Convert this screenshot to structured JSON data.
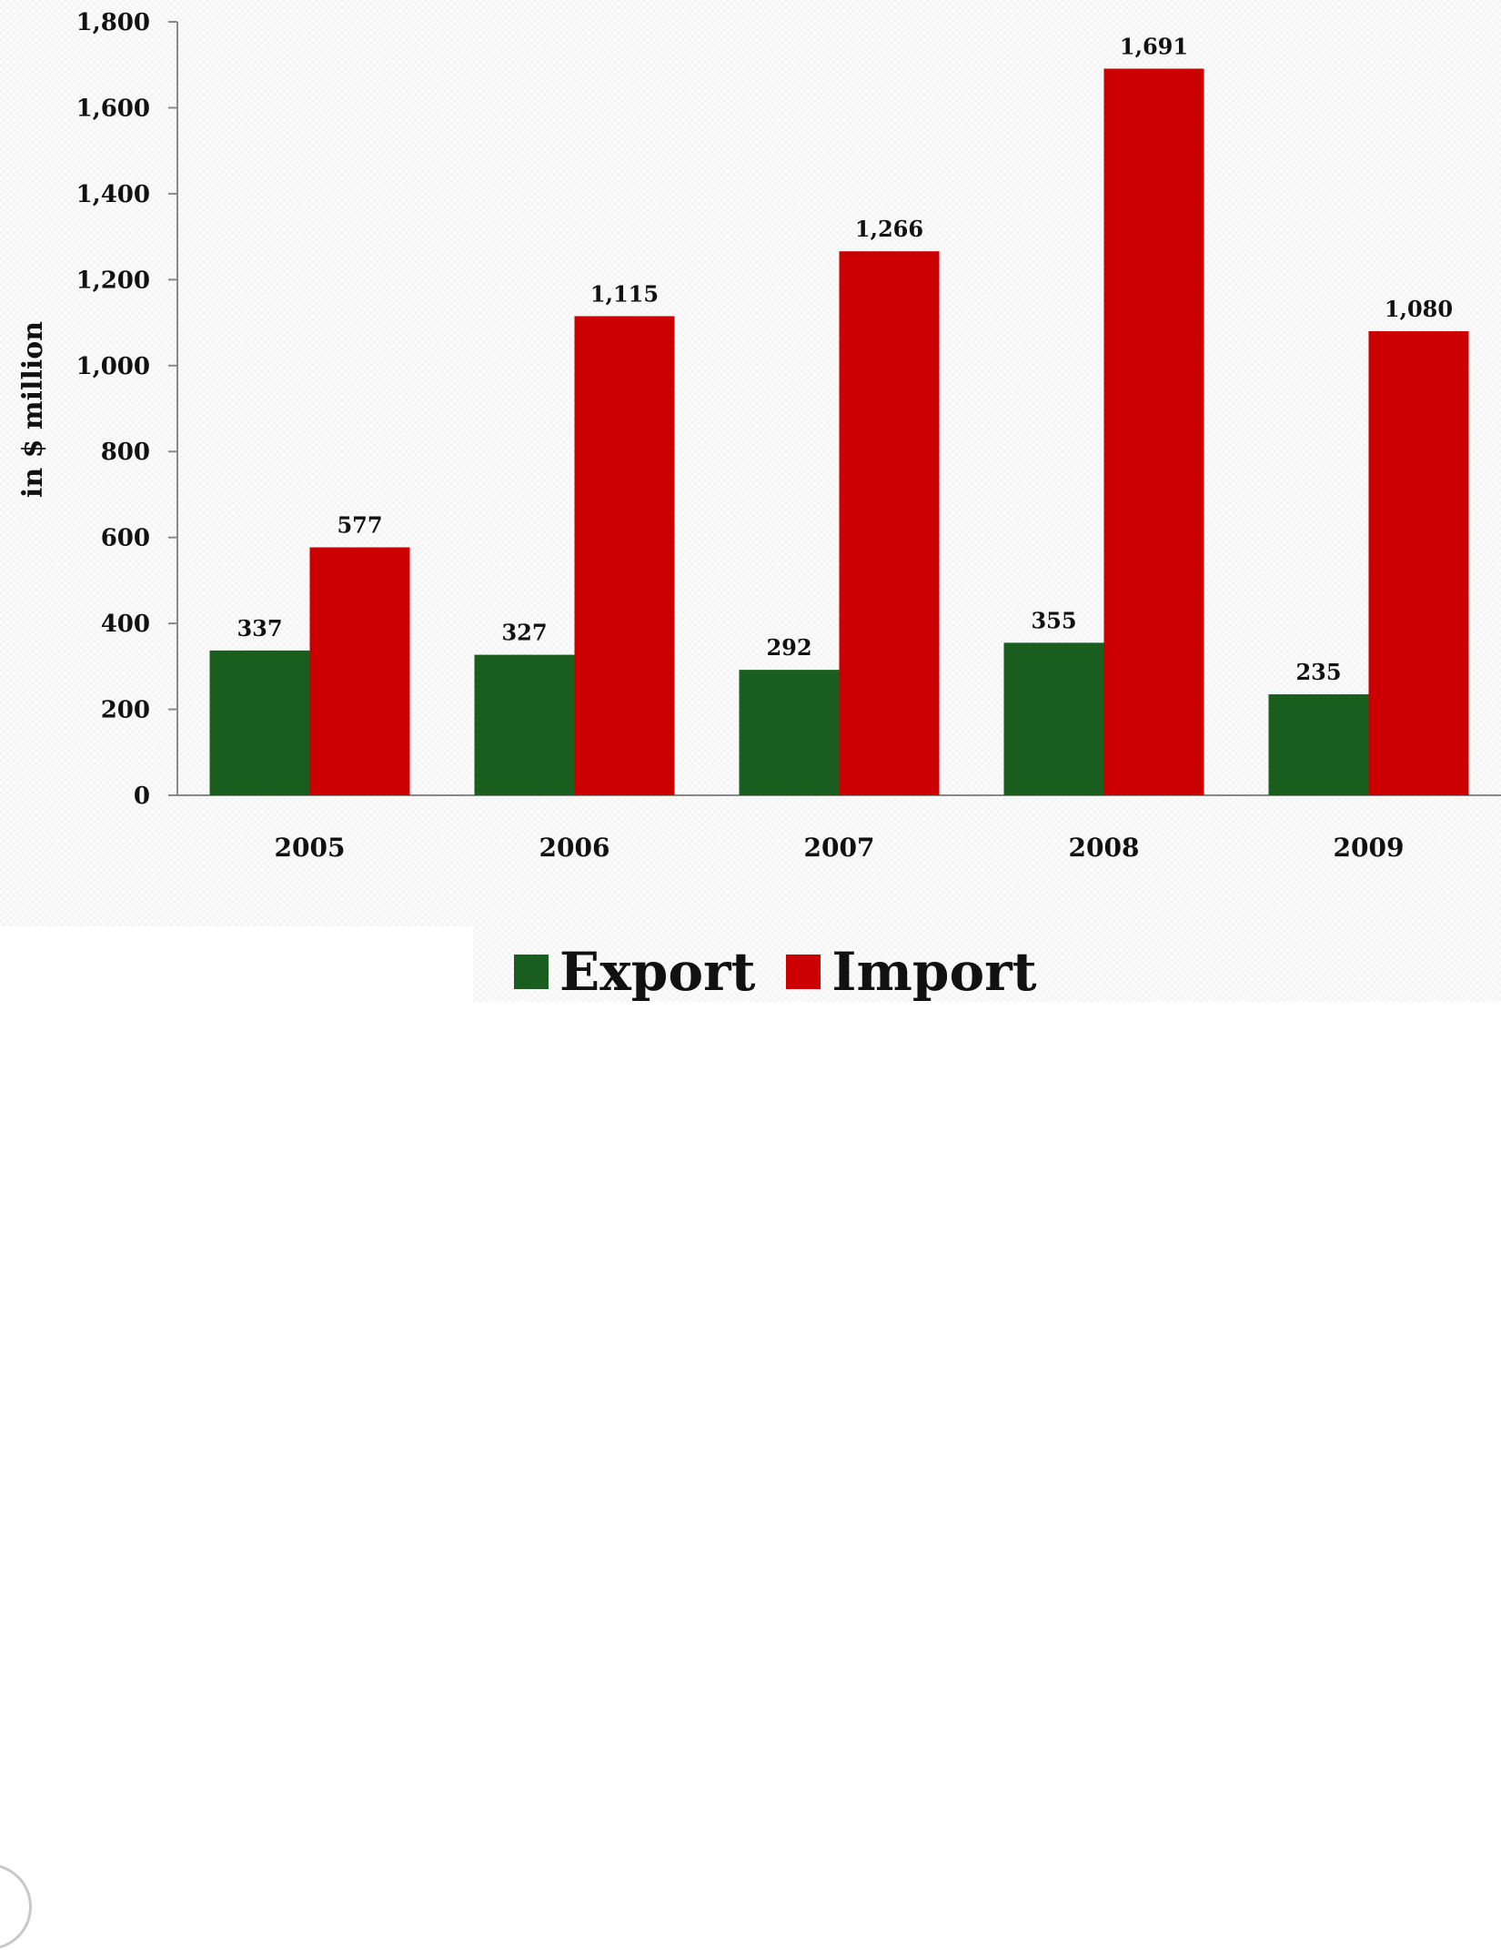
{
  "chart_data": {
    "type": "bar",
    "categories": [
      "2005",
      "2006",
      "2007",
      "2008",
      "2009"
    ],
    "series": [
      {
        "name": "Export",
        "color": "#1a5e1f",
        "values": [
          337,
          327,
          292,
          355,
          235
        ]
      },
      {
        "name": "Import",
        "color": "#cc0000",
        "values": [
          577,
          1115,
          1266,
          1691,
          1080
        ]
      }
    ],
    "data_labels": {
      "Export": [
        "337",
        "327",
        "292",
        "355",
        "235"
      ],
      "Import": [
        "577",
        "1,115",
        "1,266",
        "1,691",
        "1,080"
      ]
    },
    "ylabel": "in $ million",
    "xlabel": "",
    "ylim": [
      0,
      1800
    ],
    "yticks": [
      "0",
      "200",
      "400",
      "600",
      "800",
      "1,000",
      "1,200",
      "1,400",
      "1,600",
      "1,800"
    ],
    "ytick_values": [
      0,
      200,
      400,
      600,
      800,
      1000,
      1200,
      1400,
      1600,
      1800
    ],
    "grid": false,
    "legend_position": "bottom"
  },
  "legend": {
    "export_label": "Export",
    "import_label": "Import"
  }
}
